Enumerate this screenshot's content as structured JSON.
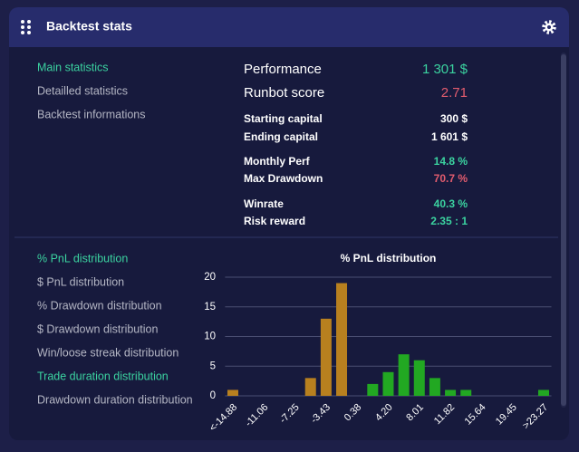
{
  "header": {
    "title": "Backtest stats"
  },
  "menu_top": [
    "Main statistics",
    "Detailled statistics",
    "Backtest informations"
  ],
  "stats": [
    {
      "label": "Performance",
      "value": "1 301 $"
    },
    {
      "label": "Runbot score",
      "value": "2.71"
    },
    {
      "label": "Starting capital",
      "value": "300 $"
    },
    {
      "label": "Ending capital",
      "value": "1 601 $"
    },
    {
      "label": "Monthly Perf",
      "value": "14.8 %"
    },
    {
      "label": "Max Drawdown",
      "value": "70.7 %"
    },
    {
      "label": "Winrate",
      "value": "40.3 %"
    },
    {
      "label": "Risk reward",
      "value": "2.35 : 1"
    }
  ],
  "menu_bottom": [
    "% PnL distribution",
    "$ PnL distribution",
    "% Drawdown distribution",
    "$ Drawdown distribution",
    "Win/loose streak distribution",
    "Trade duration distribution",
    "Drawdown duration distribution"
  ],
  "chart_data": {
    "type": "bar",
    "title": "% PnL distribution",
    "categories": [
      "<-14.88",
      null,
      "-11.06",
      null,
      "-7.25",
      null,
      "-3.43",
      null,
      "0.38",
      null,
      "4.20",
      null,
      "8.01",
      null,
      "11.82",
      null,
      "15.64",
      null,
      "19.45",
      null,
      ">23.27"
    ],
    "values": [
      1,
      0,
      0,
      0,
      0,
      3,
      13,
      19,
      0,
      2,
      4,
      7,
      6,
      3,
      1,
      1,
      0,
      0,
      0,
      0,
      1
    ],
    "colors": [
      "#b8801f",
      "#b8801f",
      "#b8801f",
      "#b8801f",
      "#b8801f",
      "#b8801f",
      "#b8801f",
      "#b8801f",
      "#b8801f",
      "#22a822",
      "#22a822",
      "#22a822",
      "#22a822",
      "#22a822",
      "#22a822",
      "#22a822",
      "#22a822",
      "#22a822",
      "#22a822",
      "#22a822",
      "#22a822"
    ],
    "ylim": [
      0,
      20
    ],
    "yticks": [
      0,
      5,
      10,
      15,
      20
    ],
    "grid": true
  }
}
